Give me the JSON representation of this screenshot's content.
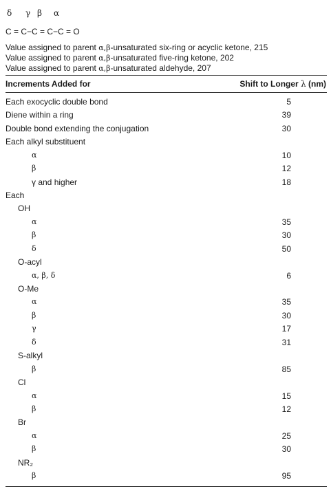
{
  "greek_letters": [
    "δ",
    "γ",
    "β",
    "α"
  ],
  "structure": "C = C−C = C−C = O",
  "assigned_values": [
    {
      "prefix": "Value assigned to parent ",
      "greek": "α,β",
      "suffix": "-unsaturated six-ring or acyclic ketone, 215"
    },
    {
      "prefix": "Value assigned to parent ",
      "greek": "α,β",
      "suffix": "-unsaturated five-ring ketone, 202"
    },
    {
      "prefix": "Value assigned to parent ",
      "greek": "α,β",
      "suffix": "-unsaturated aldehyde, 207"
    }
  ],
  "table": {
    "header_left": "Increments Added for",
    "header_right_text": "Shift to Longer ",
    "header_right_lambda": "λ",
    "header_right_unit": " (nm)",
    "rows": [
      {
        "label": "Each exocyclic double bond",
        "value": "5",
        "level": 0,
        "greek": false
      },
      {
        "label": "Diene within a ring",
        "value": "39",
        "level": 0,
        "greek": false
      },
      {
        "label": "Double bond extending the conjugation",
        "value": "30",
        "level": 0,
        "greek": false
      },
      {
        "label": "Each alkyl substituent",
        "value": "",
        "level": 0,
        "greek": false
      },
      {
        "label": "α",
        "value": "10",
        "level": 2,
        "greek": true
      },
      {
        "label": "β",
        "value": "12",
        "level": 2,
        "greek": true
      },
      {
        "label": "γ and higher",
        "value": "18",
        "level": 2,
        "greek": false
      },
      {
        "label": "Each",
        "value": "",
        "level": 0,
        "greek": false
      },
      {
        "label": "OH",
        "value": "",
        "level": 1,
        "greek": false
      },
      {
        "label": "α",
        "value": "35",
        "level": 2,
        "greek": true
      },
      {
        "label": "β",
        "value": "30",
        "level": 2,
        "greek": true
      },
      {
        "label": "δ",
        "value": "50",
        "level": 2,
        "greek": true
      },
      {
        "label": "O-acyl",
        "value": "",
        "level": 1,
        "greek": false
      },
      {
        "label": "α, β, δ",
        "value": "6",
        "level": 2,
        "greek": true
      },
      {
        "label": "O-Me",
        "value": "",
        "level": 1,
        "greek": false
      },
      {
        "label": "α",
        "value": "35",
        "level": 2,
        "greek": true
      },
      {
        "label": "β",
        "value": "30",
        "level": 2,
        "greek": true
      },
      {
        "label": "γ",
        "value": "17",
        "level": 2,
        "greek": true
      },
      {
        "label": "δ",
        "value": "31",
        "level": 2,
        "greek": true
      },
      {
        "label": "S-alkyl",
        "value": "",
        "level": 1,
        "greek": false
      },
      {
        "label": "β",
        "value": "85",
        "level": 2,
        "greek": true
      },
      {
        "label": "Cl",
        "value": "",
        "level": 1,
        "greek": false
      },
      {
        "label": "α",
        "value": "15",
        "level": 2,
        "greek": true
      },
      {
        "label": "β",
        "value": "12",
        "level": 2,
        "greek": true
      },
      {
        "label": "Br",
        "value": "",
        "level": 1,
        "greek": false
      },
      {
        "label": "α",
        "value": "25",
        "level": 2,
        "greek": true
      },
      {
        "label": "β",
        "value": "30",
        "level": 2,
        "greek": true
      },
      {
        "label": "NR₂",
        "value": "",
        "level": 1,
        "greek": false
      },
      {
        "label": "β",
        "value": "95",
        "level": 2,
        "greek": true
      }
    ]
  }
}
